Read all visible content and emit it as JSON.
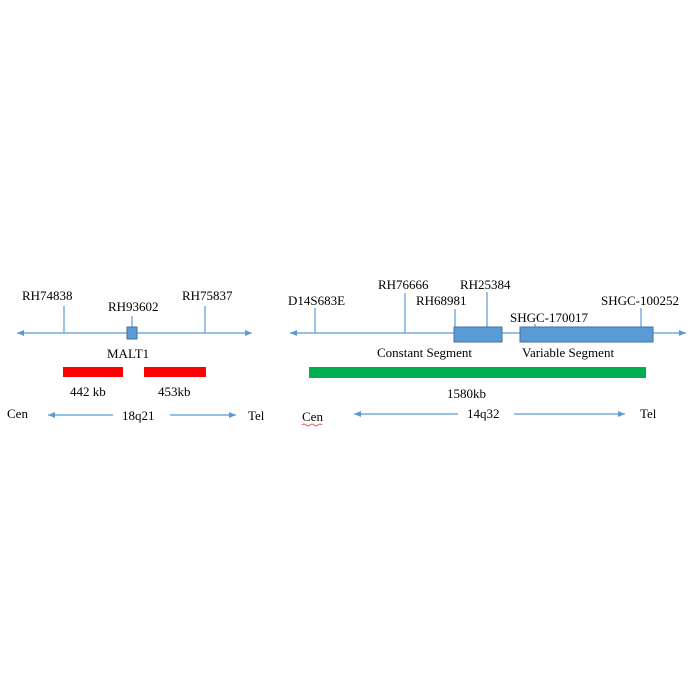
{
  "left": {
    "markers": [
      "RH74838",
      "RH93602",
      "RH75837"
    ],
    "gene": "MALT1",
    "segments": [
      "442 kb",
      "453kb"
    ],
    "cen": "Cen",
    "band": "18q21",
    "tel": "Tel"
  },
  "right": {
    "markers": [
      "D14S683E",
      "RH76666",
      "RH68981",
      "RH25384",
      "SHGC-170017",
      "SHGC-100252"
    ],
    "constant": "Constant Segment",
    "variable": "Variable Segment",
    "segment": "1580kb",
    "cen": "Cen",
    "band": "14q32",
    "tel": "Tel"
  }
}
